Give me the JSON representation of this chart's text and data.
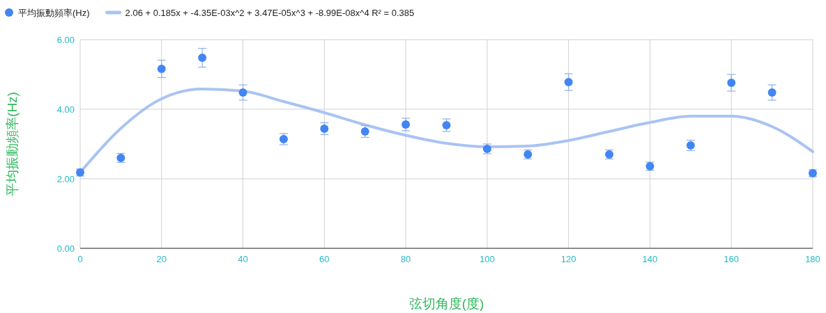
{
  "chart_data": {
    "type": "scatter",
    "xlabel": "弦切角度(度)",
    "ylabel": "平均振動頻率(Hz)",
    "xlim": [
      0,
      180
    ],
    "ylim": [
      0,
      6
    ],
    "xticks": [
      0,
      20,
      40,
      60,
      80,
      100,
      120,
      140,
      160,
      180
    ],
    "yticks": [
      {
        "value": 0,
        "label": "0.00"
      },
      {
        "value": 2,
        "label": "2.00"
      },
      {
        "value": 4,
        "label": "4.00"
      },
      {
        "value": 6,
        "label": "6.00"
      }
    ],
    "grid": true,
    "legend": "top left",
    "series": [
      {
        "name": "平均振動頻率(Hz)",
        "marker": "circle",
        "color": "#4285f4",
        "x": [
          0,
          10,
          20,
          30,
          40,
          50,
          60,
          70,
          80,
          90,
          100,
          110,
          120,
          130,
          140,
          150,
          160,
          170,
          180
        ],
        "values": [
          2.18,
          2.6,
          5.16,
          5.48,
          4.48,
          3.14,
          3.44,
          3.36,
          3.56,
          3.54,
          2.86,
          2.7,
          4.78,
          2.7,
          2.36,
          2.96,
          4.76,
          4.48,
          2.16
        ],
        "errors": [
          0.1,
          0.13,
          0.25,
          0.27,
          0.22,
          0.16,
          0.17,
          0.17,
          0.18,
          0.18,
          0.14,
          0.13,
          0.24,
          0.13,
          0.12,
          0.15,
          0.24,
          0.22,
          0.1
        ]
      },
      {
        "name": "2.06 + 0.185x + -4.35E-03x^2 + 3.47E-05x^3 + -8.99E-08x^4 R² = 0.385",
        "type": "line",
        "color": "#a9c3f3",
        "x": [
          0,
          10,
          20,
          30,
          40,
          50,
          60,
          70,
          80,
          90,
          100,
          110,
          120,
          130,
          140,
          150,
          160,
          170,
          180
        ],
        "values": [
          2.18,
          3.45,
          4.3,
          4.58,
          4.52,
          4.22,
          3.9,
          3.55,
          3.25,
          3.02,
          2.92,
          2.94,
          3.1,
          3.36,
          3.62,
          3.8,
          3.8,
          3.5,
          2.78
        ]
      }
    ]
  }
}
